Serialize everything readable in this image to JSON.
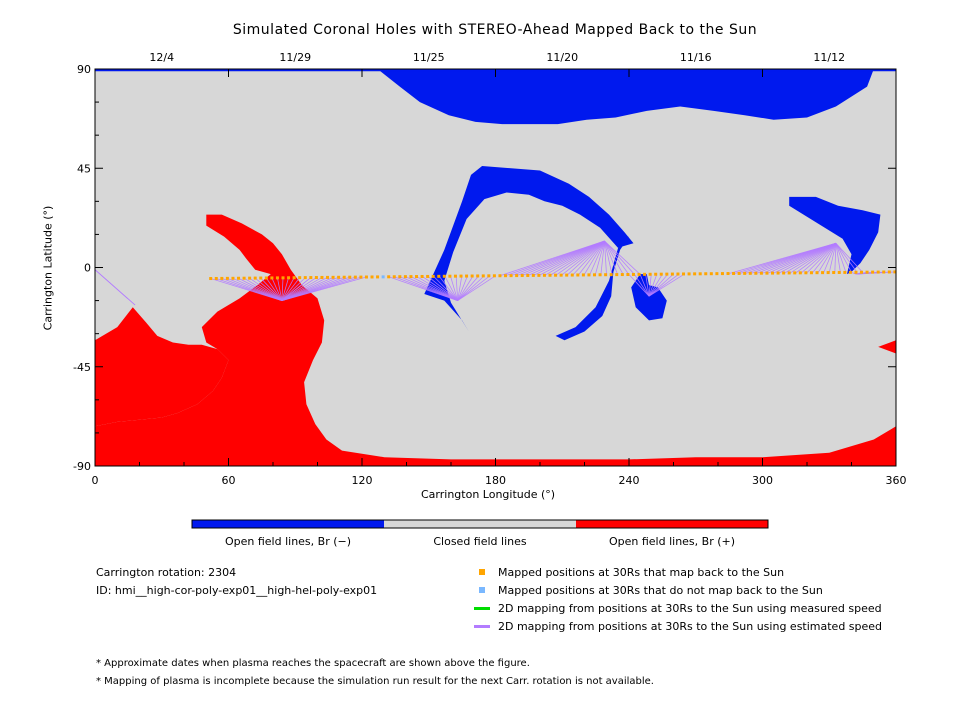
{
  "colors": {
    "open_negative": "#0019ee",
    "closed": "#d7d7d7",
    "open_positive": "#ff0000",
    "mapped_back": "#ffa500",
    "not_mapped": "#7ab8ff",
    "measured_line": "#00dd00",
    "estimated_line": "#b37cff"
  },
  "chart_data": {
    "type": "heatmap",
    "title": "Simulated Coronal Holes with STEREO-Ahead Mapped Back to the Sun",
    "xlabel": "Carrington Longitude (°)",
    "ylabel": "Carrington Latitude (°)",
    "xlim": [
      0,
      360
    ],
    "ylim": [
      -90,
      90
    ],
    "x_ticks": [
      0,
      60,
      120,
      180,
      240,
      300,
      360
    ],
    "y_ticks": [
      90,
      45,
      0,
      -45,
      -90
    ],
    "top_axis_dates": [
      {
        "label": "12/4",
        "lon": 30
      },
      {
        "label": "11/29",
        "lon": 90
      },
      {
        "label": "11/25",
        "lon": 150
      },
      {
        "label": "11/20",
        "lon": 210
      },
      {
        "label": "11/16",
        "lon": 270
      },
      {
        "label": "11/12",
        "lon": 330
      }
    ],
    "colorbar": [
      {
        "label": "Open field lines, Br (−)",
        "color": "#0019ee"
      },
      {
        "label": "Closed field lines",
        "color": "#d7d7d7"
      },
      {
        "label": "Open field lines, Br (+)",
        "color": "#ff0000"
      }
    ],
    "regions": [
      {
        "polarity": "negative",
        "points": [
          [
            127,
            90
          ],
          [
            350,
            90
          ],
          [
            347,
            82
          ],
          [
            333,
            73
          ],
          [
            320,
            68
          ],
          [
            305,
            67
          ],
          [
            292,
            69
          ],
          [
            278,
            71
          ],
          [
            263,
            73
          ],
          [
            248,
            71
          ],
          [
            234,
            68
          ],
          [
            221,
            67
          ],
          [
            208,
            65
          ],
          [
            196,
            65
          ],
          [
            183,
            65
          ],
          [
            171,
            66
          ],
          [
            159,
            69
          ],
          [
            146,
            75
          ],
          [
            137,
            82
          ]
        ]
      },
      {
        "polarity": "negative",
        "points": [
          [
            0,
            90
          ],
          [
            360,
            90
          ],
          [
            360,
            89
          ],
          [
            0,
            89
          ]
        ]
      },
      {
        "polarity": "negative",
        "points": [
          [
            148,
            -12
          ],
          [
            157,
            8
          ],
          [
            165,
            30
          ],
          [
            169,
            42
          ],
          [
            174,
            46
          ],
          [
            187,
            45
          ],
          [
            200,
            44
          ],
          [
            213,
            38
          ],
          [
            222,
            32
          ],
          [
            231,
            24
          ],
          [
            238,
            16
          ],
          [
            242,
            11
          ],
          [
            235,
            9
          ],
          [
            227,
            18
          ],
          [
            218,
            24
          ],
          [
            210,
            28
          ],
          [
            202,
            30
          ],
          [
            195,
            33
          ],
          [
            185,
            34
          ],
          [
            175,
            31
          ],
          [
            167,
            22
          ],
          [
            161,
            7
          ],
          [
            157,
            -6
          ],
          [
            160,
            -16
          ],
          [
            168,
            -29
          ],
          [
            165,
            -24
          ],
          [
            157,
            -15
          ]
        ]
      },
      {
        "polarity": "negative",
        "points": [
          [
            245,
            -3
          ],
          [
            241,
            -9
          ],
          [
            243,
            -18
          ],
          [
            249,
            -24
          ],
          [
            255,
            -23
          ],
          [
            257,
            -15
          ],
          [
            253,
            -9
          ],
          [
            249,
            -8
          ],
          [
            248,
            -3
          ]
        ]
      },
      {
        "polarity": "negative",
        "points": [
          [
            211,
            -33
          ],
          [
            220,
            -29
          ],
          [
            228,
            -22
          ],
          [
            232,
            -13
          ],
          [
            233,
            -2
          ],
          [
            236,
            8
          ],
          [
            240,
            14
          ],
          [
            236,
            12
          ],
          [
            234,
            5
          ],
          [
            231,
            -6
          ],
          [
            225,
            -18
          ],
          [
            216,
            -27
          ],
          [
            207,
            -31
          ]
        ]
      },
      {
        "polarity": "negative",
        "points": [
          [
            312,
            32
          ],
          [
            324,
            32
          ],
          [
            334,
            28
          ],
          [
            345,
            26
          ],
          [
            353,
            24
          ],
          [
            352,
            16
          ],
          [
            348,
            8
          ],
          [
            344,
            2
          ],
          [
            340,
            -2
          ],
          [
            338,
            -3
          ],
          [
            340,
            6
          ],
          [
            336,
            13
          ],
          [
            328,
            18
          ],
          [
            320,
            23
          ],
          [
            312,
            28
          ]
        ]
      },
      {
        "polarity": "positive",
        "points": [
          [
            0,
            -33
          ],
          [
            10,
            -27
          ],
          [
            17,
            -18
          ],
          [
            23,
            -25
          ],
          [
            28,
            -31
          ],
          [
            35,
            -34
          ],
          [
            42,
            -35
          ],
          [
            48,
            -35
          ],
          [
            55,
            -37
          ],
          [
            60,
            -42
          ],
          [
            57,
            -50
          ],
          [
            53,
            -56
          ],
          [
            46,
            -62
          ],
          [
            37,
            -66
          ],
          [
            30,
            -68
          ],
          [
            20,
            -69
          ],
          [
            10,
            -70
          ],
          [
            0,
            -72
          ]
        ]
      },
      {
        "polarity": "positive",
        "points": [
          [
            0,
            -72
          ],
          [
            10,
            -70
          ],
          [
            20,
            -69
          ],
          [
            30,
            -68
          ],
          [
            37,
            -66
          ],
          [
            46,
            -62
          ],
          [
            53,
            -56
          ],
          [
            57,
            -50
          ],
          [
            60,
            -42
          ],
          [
            55,
            -37
          ],
          [
            50,
            -34
          ],
          [
            48,
            -27
          ],
          [
            55,
            -20
          ],
          [
            65,
            -14
          ],
          [
            73,
            -8
          ],
          [
            79,
            -3
          ],
          [
            72,
            -1
          ],
          [
            68,
            4
          ],
          [
            65,
            8
          ],
          [
            58,
            14
          ],
          [
            50,
            19
          ],
          [
            50,
            24
          ],
          [
            57,
            24
          ],
          [
            66,
            20
          ],
          [
            75,
            15
          ],
          [
            80,
            11
          ],
          [
            84,
            6
          ],
          [
            88,
            -1
          ],
          [
            93,
            -8
          ],
          [
            100,
            -14
          ],
          [
            103,
            -24
          ],
          [
            102,
            -34
          ],
          [
            98,
            -42
          ],
          [
            94,
            -52
          ],
          [
            95,
            -62
          ],
          [
            99,
            -71
          ],
          [
            104,
            -78
          ],
          [
            111,
            -83
          ],
          [
            130,
            -86
          ],
          [
            160,
            -87
          ],
          [
            200,
            -87
          ],
          [
            240,
            -87
          ],
          [
            270,
            -86
          ],
          [
            300,
            -86
          ],
          [
            330,
            -84
          ],
          [
            350,
            -78
          ],
          [
            360,
            -72
          ],
          [
            360,
            -90
          ],
          [
            0,
            -90
          ]
        ]
      },
      {
        "polarity": "positive",
        "points": [
          [
            352,
            -36
          ],
          [
            360,
            -33
          ],
          [
            360,
            -39
          ]
        ]
      }
    ],
    "mapped_points": {
      "lat_start": -5,
      "lat_end": -2,
      "lon_from": 52,
      "lon_to": 360,
      "lon_step": 2.5,
      "not_mapped_lon": [
        129
      ]
    },
    "mapping_fans": [
      {
        "source": [
          84,
          -15
        ],
        "targets_lon": [
          52,
          97
        ]
      },
      {
        "source": [
          84,
          -15
        ],
        "targets_lon": [
          97,
          122
        ]
      },
      {
        "source": [
          18,
          -17
        ],
        "targets_lon": [
          0,
          0
        ]
      },
      {
        "source": [
          163,
          -15
        ],
        "targets_lon": [
          132,
          180
        ]
      },
      {
        "source": [
          229,
          12
        ],
        "targets_lon": [
          182,
          245
        ]
      },
      {
        "source": [
          249,
          -13
        ],
        "targets_lon": [
          240,
          265
        ]
      },
      {
        "source": [
          333,
          11
        ],
        "targets_lon": [
          285,
          345
        ]
      },
      {
        "source": [
          342,
          -3
        ],
        "targets_lon": [
          340,
          360
        ]
      }
    ]
  },
  "legend": [
    {
      "label": "Mapped positions at 30Rs that map back to the Sun",
      "kind": "square",
      "color": "#ffa500"
    },
    {
      "label": "Mapped positions at 30Rs that do not map back to the Sun",
      "kind": "square",
      "color": "#7ab8ff"
    },
    {
      "label": "2D mapping from positions at 30Rs to the Sun using measured speed",
      "kind": "line",
      "color": "#00dd00"
    },
    {
      "label": "2D mapping from positions at 30Rs to the Sun using estimated speed",
      "kind": "line",
      "color": "#b37cff"
    }
  ],
  "info": {
    "rotation": "Carrington rotation: 2304",
    "model_id": "ID: hmi__high-cor-poly-exp01__high-hel-poly-exp01"
  },
  "notes": [
    "* Approximate dates when plasma reaches the spacecraft are shown above the figure.",
    "* Mapping of plasma is incomplete because the simulation run result for the next Carr. rotation is not available."
  ]
}
